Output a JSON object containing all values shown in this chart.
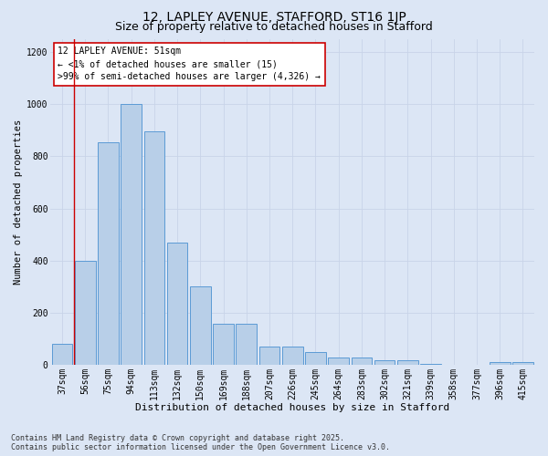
{
  "title1": "12, LAPLEY AVENUE, STAFFORD, ST16 1JP",
  "title2": "Size of property relative to detached houses in Stafford",
  "xlabel": "Distribution of detached houses by size in Stafford",
  "ylabel": "Number of detached properties",
  "categories": [
    "37sqm",
    "56sqm",
    "75sqm",
    "94sqm",
    "113sqm",
    "132sqm",
    "150sqm",
    "169sqm",
    "188sqm",
    "207sqm",
    "226sqm",
    "245sqm",
    "264sqm",
    "283sqm",
    "302sqm",
    "321sqm",
    "339sqm",
    "358sqm",
    "377sqm",
    "396sqm",
    "415sqm"
  ],
  "values": [
    80,
    400,
    855,
    1000,
    895,
    470,
    300,
    160,
    160,
    70,
    70,
    50,
    30,
    30,
    20,
    20,
    5,
    0,
    0,
    10,
    10
  ],
  "bar_color": "#b8cfe8",
  "bar_edge_color": "#5b9bd5",
  "annotation_box_text": "12 LAPLEY AVENUE: 51sqm\n← <1% of detached houses are smaller (15)\n>99% of semi-detached houses are larger (4,326) →",
  "annotation_box_color": "#ffffff",
  "annotation_box_edge_color": "#cc0000",
  "vline_color": "#cc0000",
  "ylim": [
    0,
    1250
  ],
  "yticks": [
    0,
    200,
    400,
    600,
    800,
    1000,
    1200
  ],
  "grid_color": "#c8d4e8",
  "bg_color": "#dce6f5",
  "footer": "Contains HM Land Registry data © Crown copyright and database right 2025.\nContains public sector information licensed under the Open Government Licence v3.0.",
  "title1_fontsize": 10,
  "title2_fontsize": 9,
  "xlabel_fontsize": 8,
  "ylabel_fontsize": 7.5,
  "tick_fontsize": 7,
  "annotation_fontsize": 7,
  "footer_fontsize": 6
}
